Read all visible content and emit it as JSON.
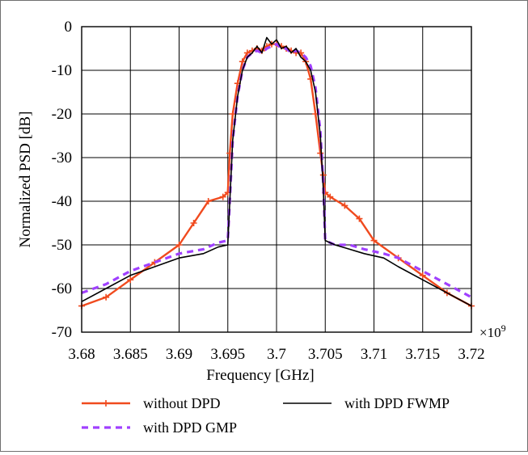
{
  "chart_data": {
    "type": "line",
    "xlabel": "Frequency [GHz]",
    "ylabel": "Normalized PSD [dB]",
    "x_multiplier": "×10",
    "x_multiplier_exp": "9",
    "xlim": [
      3.68,
      3.72
    ],
    "ylim": [
      -70,
      0
    ],
    "xticks": [
      "3.68",
      "3.685",
      "3.69",
      "3.695",
      "3.7",
      "3.705",
      "3.71",
      "3.715",
      "3.72"
    ],
    "yticks": [
      "0",
      "-10",
      "-20",
      "-30",
      "-40",
      "-50",
      "-60",
      "-70"
    ],
    "grid": true,
    "legend_position": "bottom",
    "series": [
      {
        "name": "without DPD",
        "color": "#f04a1e",
        "style": "solid-plus-markers",
        "x": [
          3.68,
          3.6825,
          3.685,
          3.6875,
          3.69,
          3.6915,
          3.693,
          3.6945,
          3.695,
          3.6952,
          3.6955,
          3.696,
          3.6965,
          3.697,
          3.6975,
          3.698,
          3.6985,
          3.699,
          3.6995,
          3.7,
          3.7005,
          3.701,
          3.7015,
          3.702,
          3.7025,
          3.703,
          3.7035,
          3.704,
          3.7045,
          3.7048,
          3.705,
          3.7055,
          3.707,
          3.7085,
          3.71,
          3.7125,
          3.715,
          3.7175,
          3.72
        ],
        "y": [
          -64,
          -62,
          -58,
          -54,
          -50,
          -45,
          -40,
          -39,
          -38,
          -29,
          -20,
          -13,
          -8,
          -6,
          -5.5,
          -5,
          -5.5,
          -4.5,
          -4,
          -4,
          -4.5,
          -5,
          -5.5,
          -6,
          -6,
          -8,
          -12,
          -20,
          -29,
          -34,
          -38,
          -39,
          -41,
          -44,
          -49,
          -53,
          -57,
          -61,
          -64
        ]
      },
      {
        "name": "with DPD GMP",
        "color": "#a040ff",
        "style": "dashed",
        "x": [
          3.68,
          3.6825,
          3.685,
          3.6875,
          3.69,
          3.6925,
          3.694,
          3.695,
          3.6952,
          3.6955,
          3.696,
          3.6965,
          3.697,
          3.6975,
          3.698,
          3.6985,
          3.699,
          3.6995,
          3.7,
          3.7005,
          3.701,
          3.7015,
          3.702,
          3.7025,
          3.703,
          3.7035,
          3.704,
          3.7045,
          3.7048,
          3.705,
          3.706,
          3.7075,
          3.709,
          3.711,
          3.7125,
          3.715,
          3.7175,
          3.72
        ],
        "y": [
          -61,
          -59,
          -56,
          -54,
          -52,
          -51,
          -49.5,
          -49,
          -40,
          -26,
          -16,
          -10,
          -7,
          -6,
          -5.5,
          -6,
          -5,
          -4.5,
          -4,
          -5,
          -5,
          -6,
          -5.5,
          -6,
          -7,
          -9,
          -14,
          -24,
          -36,
          -49,
          -50,
          -50,
          -51,
          -52,
          -53,
          -56,
          -59,
          -62
        ]
      },
      {
        "name": "with DPD FWMP",
        "color": "#000000",
        "style": "solid",
        "x": [
          3.68,
          3.6825,
          3.685,
          3.6875,
          3.69,
          3.6925,
          3.694,
          3.695,
          3.6952,
          3.6955,
          3.696,
          3.6965,
          3.697,
          3.6975,
          3.698,
          3.6985,
          3.699,
          3.6995,
          3.7,
          3.7005,
          3.701,
          3.7015,
          3.702,
          3.7025,
          3.703,
          3.7035,
          3.704,
          3.7045,
          3.7048,
          3.705,
          3.706,
          3.7075,
          3.709,
          3.711,
          3.7125,
          3.715,
          3.7175,
          3.72
        ],
        "y": [
          -63,
          -60,
          -57,
          -55,
          -53,
          -52,
          -50.5,
          -50,
          -40,
          -26,
          -16,
          -10,
          -7,
          -6,
          -4.5,
          -6,
          -2.5,
          -4,
          -3,
          -5,
          -4.5,
          -6,
          -5,
          -7,
          -8,
          -10,
          -15,
          -25,
          -37,
          -49,
          -50,
          -51,
          -52,
          -53,
          -55,
          -58,
          -61,
          -64
        ]
      }
    ]
  }
}
